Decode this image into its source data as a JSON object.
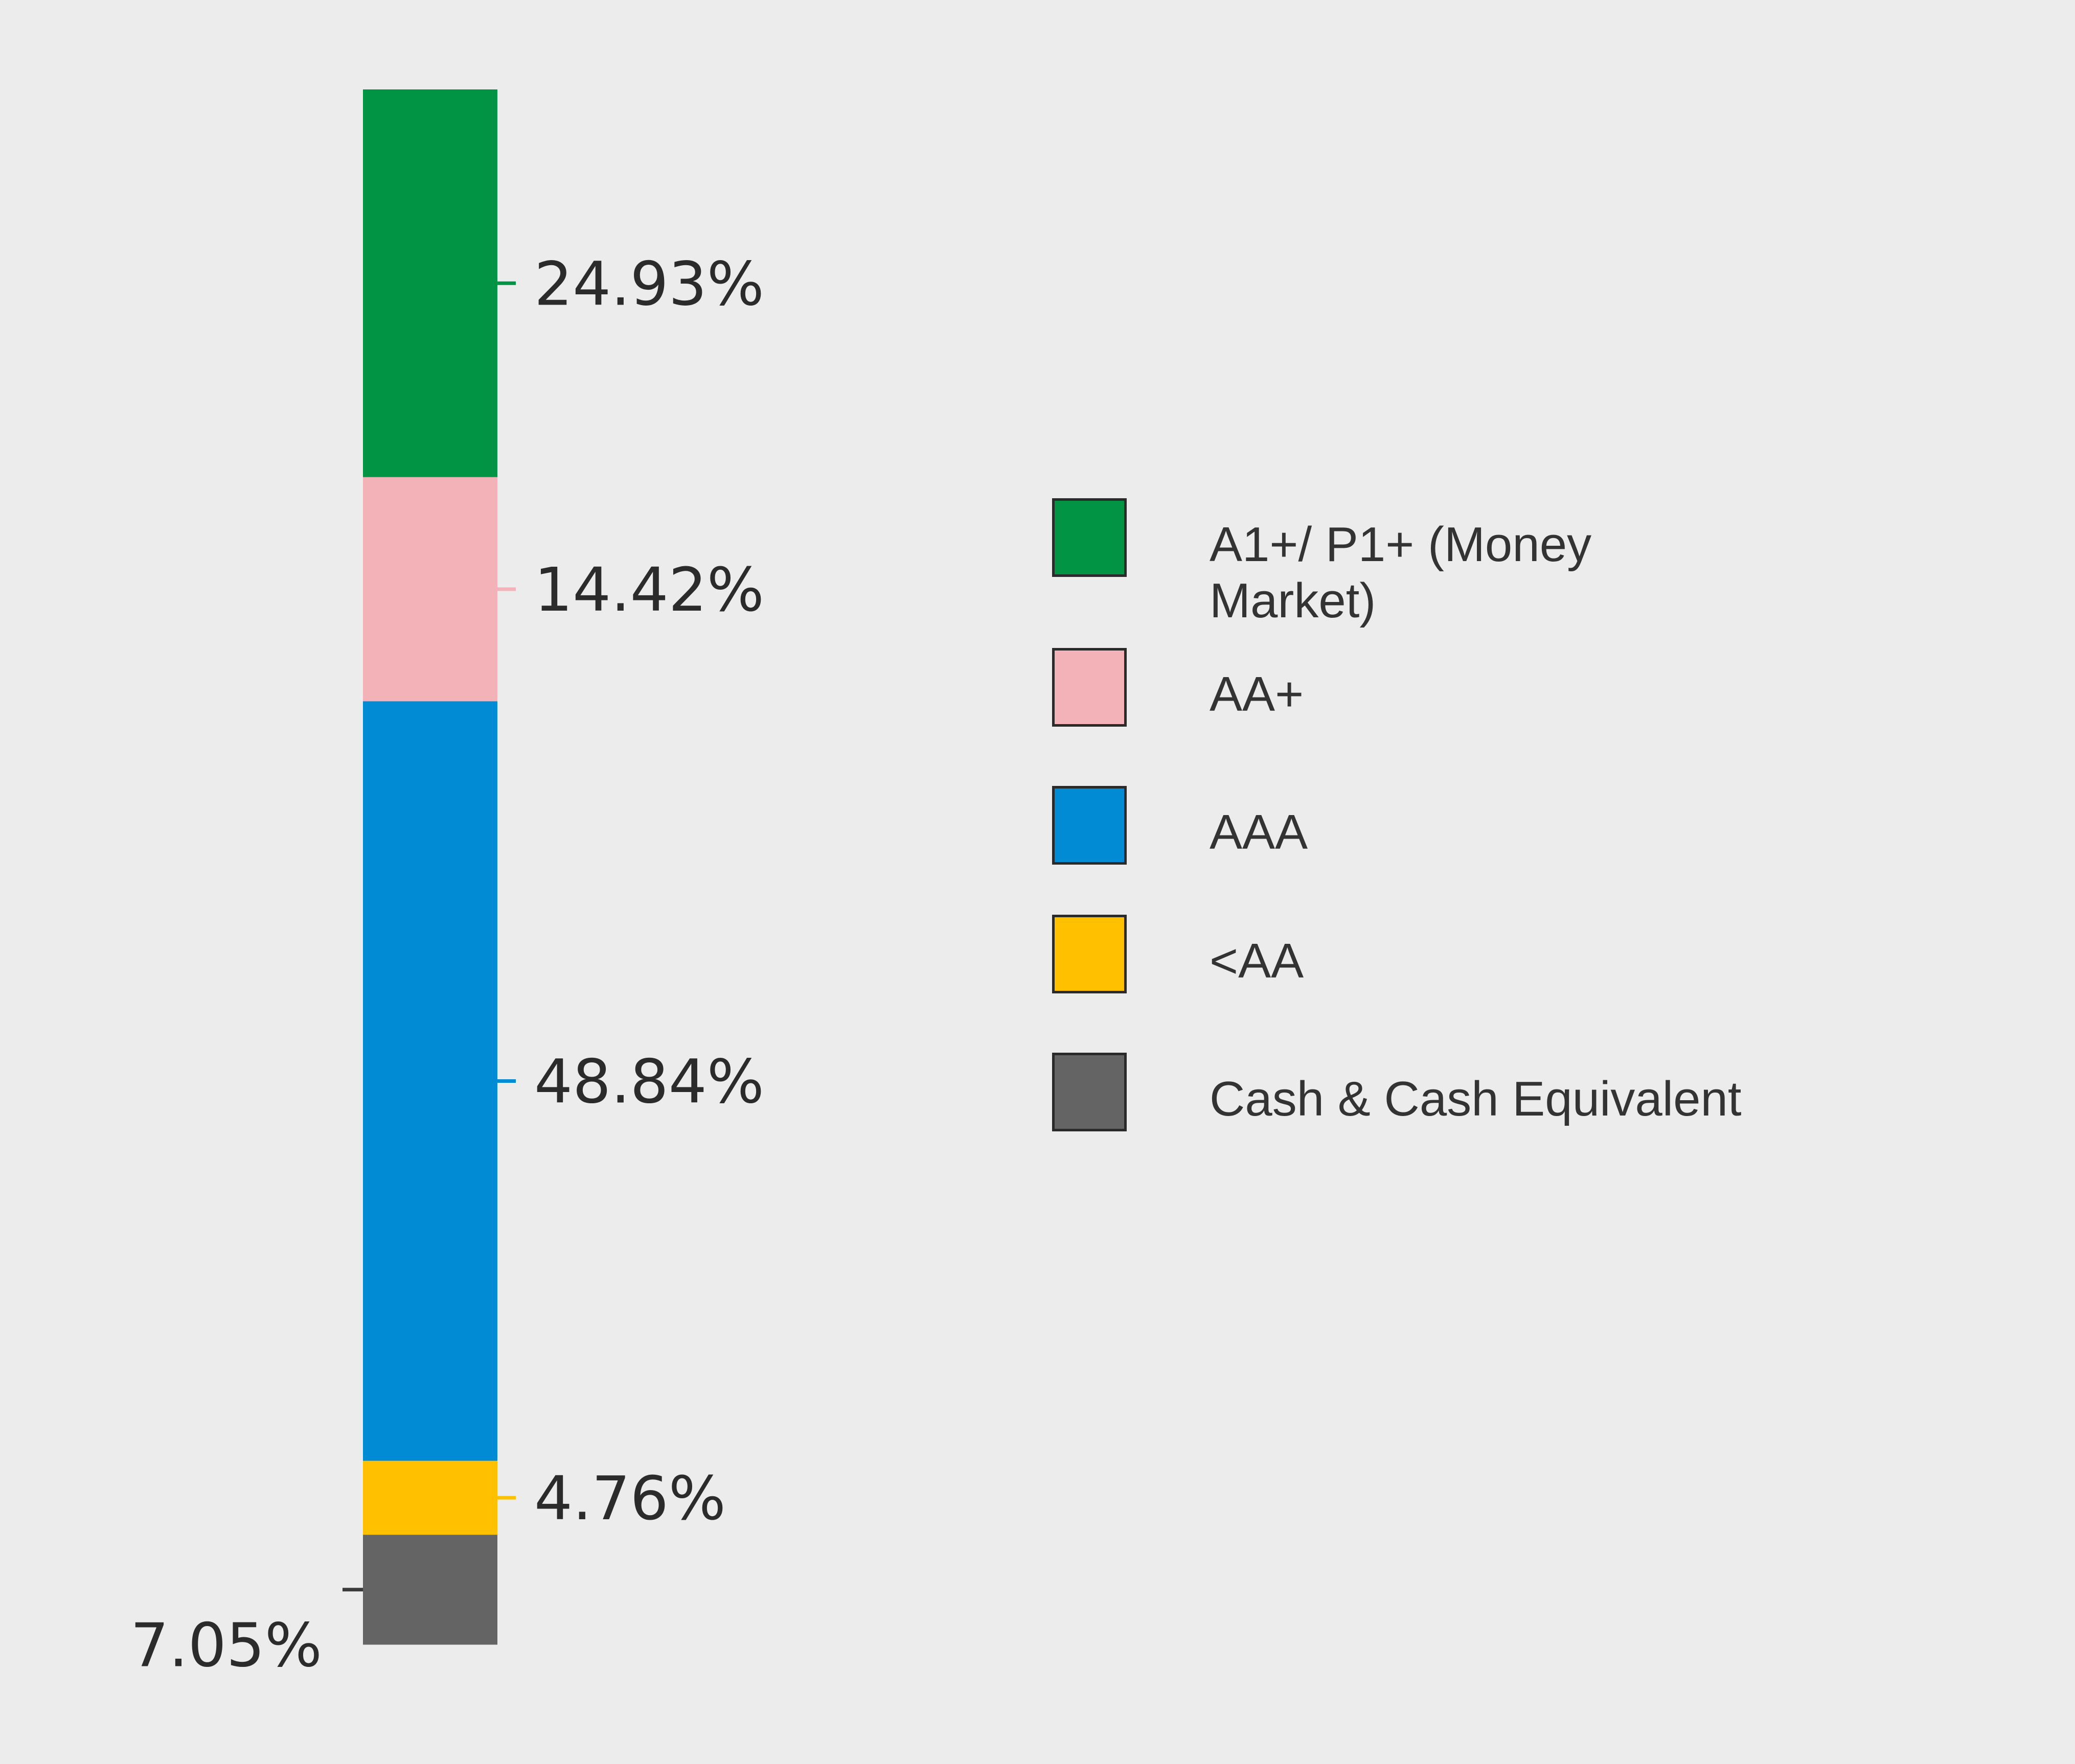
{
  "chart_data": {
    "type": "bar",
    "stacked": true,
    "orientation": "vertical",
    "categories": [
      ""
    ],
    "series": [
      {
        "name": "A1+/ P1+ (Money Market)",
        "values": [
          24.93
        ],
        "label": "24.93%",
        "color": "#009444"
      },
      {
        "name": "AA+",
        "values": [
          14.42
        ],
        "label": "14.42%",
        "color": "#f2b2b7"
      },
      {
        "name": "AAA",
        "values": [
          48.84
        ],
        "label": "48.84%",
        "color": "#008bd4"
      },
      {
        "name": "<AA",
        "values": [
          4.76
        ],
        "label": "4.76%",
        "color": "#ffc000"
      },
      {
        "name": "Cash & Cash Equivalent",
        "values": [
          7.05
        ],
        "label": "7.05%",
        "color": "#646464"
      }
    ],
    "stack_order_top_to_bottom": [
      "A1+/ P1+ (Money Market)",
      "AA+",
      "AAA",
      "<AA",
      "Cash & Cash Equivalent"
    ],
    "ylim": [
      0,
      100
    ],
    "grid": false,
    "legend_placement": "right",
    "title": "",
    "xlabel": "",
    "ylabel": ""
  },
  "legend": {
    "items": [
      {
        "label_line1": "A1+/ P1+ (Money",
        "label_line2": "Market)",
        "color": "#009444"
      },
      {
        "label_line1": "AA+",
        "label_line2": "",
        "color": "#f2b2b7"
      },
      {
        "label_line1": "AAA",
        "label_line2": "",
        "color": "#008bd4"
      },
      {
        "label_line1": "<AA",
        "label_line2": "",
        "color": "#ffc000"
      },
      {
        "label_line1": "Cash & Cash Equivalent",
        "label_line2": "",
        "color": "#646464"
      }
    ]
  }
}
